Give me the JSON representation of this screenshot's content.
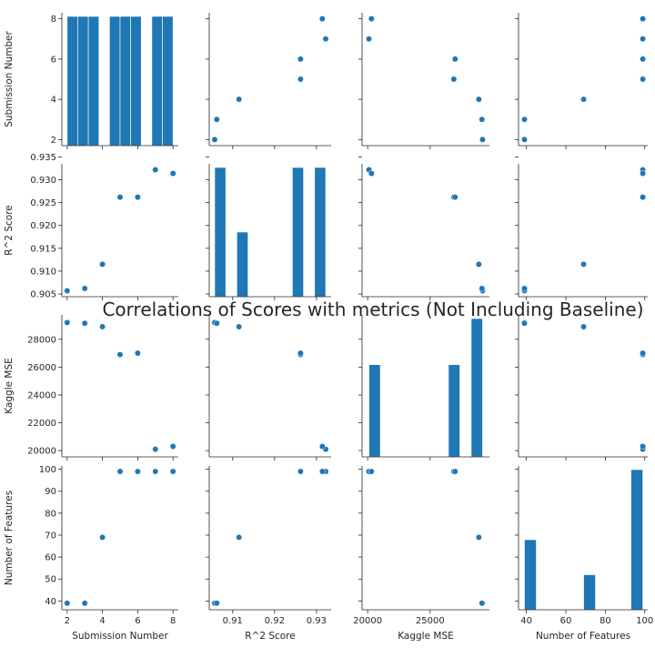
{
  "chart_data": {
    "type": "scatter",
    "title": "Correlations of Scores with metrics (Not Including Baseline)",
    "variables": [
      "Submission Number",
      "R^2 Score",
      "Kaggle MSE",
      "Number of Features"
    ],
    "data": {
      "Submission Number": [
        2,
        3,
        4,
        5,
        6,
        7,
        8
      ],
      "R^2 Score": [
        0.9057,
        0.9062,
        0.9115,
        0.9262,
        0.9262,
        0.9322,
        0.9314
      ],
      "Kaggle MSE": [
        29200,
        29150,
        28900,
        26900,
        27000,
        20100,
        20300
      ],
      "Number of Features": [
        39,
        39,
        69,
        99,
        99,
        99,
        99
      ]
    },
    "axes": {
      "Submission Number": {
        "lim": [
          1.7,
          8.3
        ],
        "ticks": [
          2,
          4,
          6,
          8
        ],
        "ticklabels": [
          "2",
          "4",
          "6",
          "8"
        ],
        "label": "Submission Number",
        "diag_hist": {
          "edges": [
            2,
            2.6,
            3.2,
            3.8,
            4.4,
            5,
            5.6,
            6.2,
            6.8,
            7.4,
            8
          ],
          "counts": [
            1,
            1,
            1,
            0,
            1,
            1,
            1,
            0,
            1,
            1
          ]
        }
      },
      "R^2 Score": {
        "lim": [
          0.9044,
          0.9335
        ],
        "ticks": [
          0.905,
          0.91,
          0.915,
          0.92,
          0.925,
          0.93,
          0.935
        ],
        "ticklabels": [
          "0.905",
          "0.910",
          "0.915",
          "0.920",
          "0.925",
          "0.930",
          "0.935"
        ],
        "xticks": [
          0.91,
          0.92,
          0.93
        ],
        "xticklabels": [
          "0.91",
          "0.92",
          "0.93"
        ],
        "label": "R^2 Score",
        "diag_hist": {
          "edges": [
            0.9057,
            0.90835,
            0.911,
            0.91365,
            0.9163,
            0.91895,
            0.9216,
            0.92425,
            0.9269,
            0.92955,
            0.9322
          ],
          "counts": [
            2,
            0,
            1,
            0,
            0,
            0,
            0,
            2,
            0,
            2
          ]
        }
      },
      "Kaggle MSE": {
        "lim": [
          19550,
          29750
        ],
        "ticks": [
          20000,
          22000,
          24000,
          26000,
          28000
        ],
        "ticklabels": [
          "20000",
          "22000",
          "24000",
          "26000",
          "28000"
        ],
        "xticks": [
          20000,
          25000
        ],
        "xticklabels": [
          "20000",
          "25000"
        ],
        "label": "Kaggle MSE",
        "diag_hist": {
          "edges": [
            20100,
            21010,
            21920,
            22830,
            23740,
            24650,
            25560,
            26470,
            27380,
            28290,
            29200
          ],
          "counts": [
            2,
            0,
            0,
            0,
            0,
            0,
            0,
            2,
            0,
            3
          ]
        }
      },
      "Number of Features": {
        "lim": [
          36,
          101.5
        ],
        "ticks": [
          40,
          50,
          60,
          70,
          80,
          90,
          100
        ],
        "ticklabels": [
          "40",
          "50",
          "60",
          "70",
          "80",
          "90",
          "100"
        ],
        "xticks": [
          40,
          60,
          80,
          100
        ],
        "xticklabels": [
          "40",
          "60",
          "80",
          "100"
        ],
        "label": "Number of Features",
        "diag_hist": {
          "edges": [
            39,
            45,
            51,
            57,
            63,
            69,
            75,
            81,
            87,
            93,
            99
          ],
          "counts": [
            2,
            0,
            0,
            0,
            0,
            1,
            0,
            0,
            0,
            4
          ]
        }
      }
    },
    "point_color": "#1f77b4",
    "bar_color": "#1f77b4",
    "grid": false,
    "legend": "none"
  }
}
